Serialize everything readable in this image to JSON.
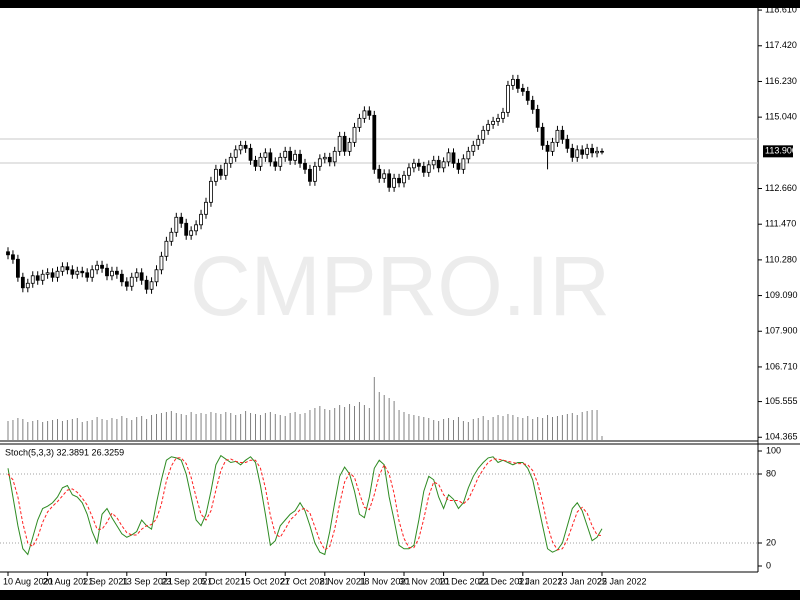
{
  "chart_data": [
    {
      "type": "candlestick",
      "watermark": "CMPRO.IR",
      "categories": [
        "10 Aug 2021",
        null,
        null,
        null,
        null,
        null,
        null,
        null,
        "20 Aug 2021",
        null,
        null,
        null,
        null,
        null,
        null,
        null,
        "1 Sep 2021",
        null,
        null,
        null,
        null,
        null,
        null,
        null,
        "13 Sep 2021",
        null,
        null,
        null,
        null,
        null,
        null,
        null,
        "23 Sep 2021",
        null,
        null,
        null,
        null,
        null,
        null,
        null,
        "5 Oct 2021",
        null,
        null,
        null,
        null,
        null,
        null,
        null,
        "15 Oct 2021",
        null,
        null,
        null,
        null,
        null,
        null,
        null,
        "27 Oct 2021",
        null,
        null,
        null,
        null,
        null,
        null,
        null,
        "8 Nov 2021",
        null,
        null,
        null,
        null,
        null,
        null,
        null,
        "18 Nov 2021",
        null,
        null,
        null,
        null,
        null,
        null,
        null,
        "30 Nov 2021",
        null,
        null,
        null,
        null,
        null,
        null,
        null,
        "10 Dec 2021",
        null,
        null,
        null,
        null,
        null,
        null,
        null,
        "22 Dec 2021",
        null,
        null,
        null,
        null,
        null,
        null,
        null,
        "3 Jan 2022",
        null,
        null,
        null,
        null,
        null,
        null,
        null,
        "13 Jan 2022",
        null,
        null,
        null,
        null,
        null,
        null,
        null,
        "25 Jan 2022"
      ],
      "open": [
        110.55,
        110.45,
        110.3,
        109.7,
        109.35,
        109.5,
        109.75,
        109.6,
        109.8,
        109.85,
        109.7,
        109.9,
        110.05,
        109.95,
        109.8,
        109.9,
        109.85,
        109.7,
        109.95,
        110.1,
        110.0,
        109.75,
        109.9,
        109.8,
        109.55,
        109.4,
        109.7,
        109.85,
        109.6,
        109.3,
        109.55,
        109.95,
        110.4,
        110.9,
        111.2,
        111.7,
        111.5,
        111.1,
        111.25,
        111.45,
        111.8,
        112.2,
        112.9,
        113.3,
        113.1,
        113.5,
        113.7,
        113.95,
        114.1,
        114.0,
        113.6,
        113.4,
        113.7,
        113.85,
        113.55,
        113.4,
        113.7,
        113.9,
        113.6,
        113.8,
        113.5,
        113.3,
        112.9,
        113.4,
        113.65,
        113.7,
        113.55,
        113.9,
        114.4,
        113.9,
        114.2,
        114.7,
        115.0,
        115.25,
        115.1,
        113.3,
        113.0,
        113.15,
        112.7,
        113.0,
        112.85,
        113.1,
        113.35,
        113.5,
        113.4,
        113.2,
        113.45,
        113.6,
        113.35,
        113.55,
        113.85,
        113.5,
        113.3,
        113.65,
        113.9,
        114.1,
        114.3,
        114.6,
        114.8,
        114.9,
        115.0,
        115.2,
        116.1,
        116.3,
        116.0,
        115.9,
        115.6,
        115.3,
        114.7,
        114.1,
        113.9,
        114.2,
        114.6,
        114.3,
        114.0,
        113.7,
        113.95,
        113.8,
        114.0,
        113.85,
        113.9
      ],
      "high": [
        110.7,
        110.6,
        110.45,
        109.85,
        109.65,
        109.9,
        109.9,
        109.95,
        110.0,
        110.0,
        110.05,
        110.2,
        110.2,
        110.1,
        110.05,
        110.05,
        110.0,
        110.1,
        110.25,
        110.25,
        110.15,
        110.05,
        110.05,
        109.95,
        109.7,
        109.85,
        110.0,
        110.0,
        109.75,
        109.7,
        110.1,
        110.55,
        111.05,
        111.35,
        111.85,
        111.85,
        111.65,
        111.4,
        111.6,
        111.95,
        112.35,
        113.05,
        113.45,
        113.45,
        113.65,
        113.85,
        114.1,
        114.25,
        114.25,
        114.15,
        113.75,
        113.85,
        114.0,
        114.0,
        113.7,
        113.85,
        114.05,
        114.05,
        113.95,
        113.95,
        113.65,
        113.45,
        113.55,
        113.8,
        113.85,
        113.85,
        114.05,
        114.55,
        114.55,
        114.35,
        114.85,
        115.15,
        115.4,
        115.4,
        115.25,
        113.45,
        113.3,
        113.3,
        113.15,
        113.15,
        113.25,
        113.5,
        113.65,
        113.65,
        113.55,
        113.6,
        113.75,
        113.75,
        113.7,
        114.0,
        114.0,
        113.65,
        113.8,
        114.05,
        114.25,
        114.45,
        114.75,
        114.95,
        115.05,
        115.15,
        115.35,
        116.25,
        116.45,
        116.45,
        116.15,
        116.05,
        115.75,
        115.45,
        114.85,
        114.25,
        114.35,
        114.75,
        114.75,
        114.45,
        114.15,
        114.1,
        114.1,
        114.15,
        114.15,
        114.05,
        114.0
      ],
      "low": [
        110.3,
        110.15,
        109.55,
        109.2,
        109.2,
        109.35,
        109.45,
        109.45,
        109.65,
        109.55,
        109.55,
        109.75,
        109.8,
        109.65,
        109.65,
        109.7,
        109.55,
        109.55,
        109.8,
        109.85,
        109.6,
        109.6,
        109.65,
        109.4,
        109.25,
        109.25,
        109.55,
        109.45,
        109.15,
        109.15,
        109.4,
        109.8,
        110.25,
        110.75,
        111.05,
        111.35,
        110.95,
        110.95,
        111.1,
        111.3,
        111.65,
        112.05,
        112.75,
        112.95,
        112.95,
        113.35,
        113.55,
        113.8,
        113.85,
        113.45,
        113.25,
        113.25,
        113.55,
        113.4,
        113.25,
        113.25,
        113.55,
        113.45,
        113.45,
        113.35,
        113.15,
        112.75,
        112.75,
        113.25,
        113.5,
        113.4,
        113.4,
        113.75,
        113.75,
        113.75,
        114.05,
        114.55,
        114.85,
        114.95,
        113.15,
        112.85,
        112.85,
        112.55,
        112.55,
        112.7,
        112.7,
        112.95,
        113.2,
        113.25,
        113.05,
        113.05,
        113.3,
        113.2,
        113.2,
        113.4,
        113.35,
        113.15,
        113.15,
        113.5,
        113.75,
        113.95,
        114.15,
        114.45,
        114.65,
        114.75,
        114.85,
        115.05,
        115.95,
        115.85,
        115.75,
        115.45,
        115.15,
        114.55,
        113.95,
        113.3,
        113.75,
        114.05,
        114.15,
        113.85,
        113.55,
        113.55,
        113.65,
        113.65,
        113.7,
        113.7,
        113.8
      ],
      "close": [
        110.45,
        110.3,
        109.7,
        109.35,
        109.5,
        109.75,
        109.6,
        109.8,
        109.85,
        109.7,
        109.9,
        110.05,
        109.95,
        109.8,
        109.9,
        109.85,
        109.7,
        109.95,
        110.1,
        110.0,
        109.75,
        109.9,
        109.8,
        109.55,
        109.4,
        109.7,
        109.85,
        109.6,
        109.3,
        109.55,
        109.95,
        110.4,
        110.9,
        111.2,
        111.7,
        111.5,
        111.1,
        111.25,
        111.45,
        111.8,
        112.2,
        112.9,
        113.3,
        113.1,
        113.5,
        113.7,
        113.95,
        114.1,
        114.0,
        113.6,
        113.4,
        113.7,
        113.85,
        113.55,
        113.4,
        113.7,
        113.9,
        113.6,
        113.8,
        113.5,
        113.3,
        112.9,
        113.4,
        113.65,
        113.7,
        113.55,
        113.9,
        114.4,
        113.9,
        114.2,
        114.7,
        115.0,
        115.25,
        115.1,
        113.3,
        113.0,
        113.15,
        112.7,
        113.0,
        112.85,
        113.1,
        113.35,
        113.5,
        113.4,
        113.2,
        113.45,
        113.6,
        113.35,
        113.55,
        113.85,
        113.5,
        113.3,
        113.65,
        113.9,
        114.1,
        114.3,
        114.6,
        114.8,
        114.9,
        115.0,
        115.2,
        116.1,
        116.3,
        116.0,
        115.9,
        115.6,
        115.3,
        114.7,
        114.1,
        113.9,
        114.2,
        114.6,
        114.3,
        114.0,
        113.7,
        113.95,
        113.8,
        114.0,
        113.85,
        113.9,
        113.9
      ],
      "volume": [
        1900,
        2000,
        2200,
        2100,
        1800,
        1900,
        2000,
        1800,
        1900,
        2000,
        2100,
        1900,
        2000,
        2100,
        2200,
        1800,
        1900,
        2000,
        2300,
        2100,
        2000,
        2200,
        2100,
        2400,
        2200,
        2000,
        2300,
        2400,
        2100,
        2500,
        2600,
        2700,
        2800,
        2900,
        2700,
        2600,
        2500,
        2800,
        2600,
        2700,
        2600,
        2800,
        2700,
        2600,
        2800,
        2700,
        2500,
        2600,
        2900,
        2700,
        2600,
        2500,
        2700,
        2800,
        2600,
        2500,
        2400,
        2700,
        2800,
        2600,
        2700,
        3000,
        3200,
        3400,
        3100,
        3000,
        3200,
        3500,
        3300,
        3600,
        3400,
        3800,
        3500,
        3200,
        6300,
        4800,
        4500,
        4200,
        3900,
        3000,
        2800,
        2600,
        2500,
        2400,
        2300,
        2200,
        2000,
        1900,
        2100,
        2200,
        2000,
        2300,
        1900,
        1800,
        2100,
        2200,
        2400,
        2000,
        2300,
        2500,
        2400,
        2600,
        2500,
        2300,
        2200,
        2400,
        2100,
        2300,
        2200,
        2500,
        2300,
        2400,
        2500,
        2600,
        2700,
        2500,
        2800,
        2900,
        3000,
        3000,
        400
      ],
      "bull_color": "#ffffff",
      "bear_color": "#000000",
      "volume_color": "#808080",
      "levels": [
        114.31,
        113.51
      ],
      "level_color": "#c8c8c8",
      "last_price": 113.9,
      "last_price_label": "113.900",
      "ylim": [
        104.24,
        118.68
      ],
      "yticks": [
        {
          "value": 118.61,
          "label": "118.610"
        },
        {
          "value": 117.42,
          "label": "117.420"
        },
        {
          "value": 116.23,
          "label": "116.230"
        },
        {
          "value": 115.04,
          "label": "115.040"
        },
        {
          "value": 112.66,
          "label": "112.660"
        },
        {
          "value": 111.47,
          "label": "111.470"
        },
        {
          "value": 110.28,
          "label": "110.280"
        },
        {
          "value": 109.09,
          "label": "109.090"
        },
        {
          "value": 107.9,
          "label": "107.900"
        },
        {
          "value": 106.71,
          "label": "106.710"
        },
        {
          "value": 105.555,
          "label": "105.555"
        },
        {
          "value": 104.365,
          "label": "104.365"
        }
      ]
    },
    {
      "type": "line",
      "title": "Stoch(5,3,3) 32.3891 26.3259",
      "series": [
        {
          "color": "#2e8b22",
          "dash": false,
          "values": [
            85,
            60,
            35,
            15,
            10,
            25,
            40,
            50,
            52,
            55,
            60,
            68,
            70,
            62,
            60,
            55,
            45,
            30,
            20,
            45,
            50,
            42,
            35,
            28,
            25,
            27,
            30,
            40,
            35,
            32,
            55,
            75,
            92,
            95,
            94,
            92,
            80,
            60,
            40,
            35,
            45,
            65,
            88,
            96,
            93,
            90,
            91,
            88,
            92,
            95,
            90,
            70,
            45,
            18,
            22,
            35,
            40,
            45,
            48,
            55,
            48,
            35,
            20,
            12,
            10,
            30,
            55,
            78,
            86,
            80,
            65,
            45,
            42,
            60,
            85,
            92,
            88,
            60,
            40,
            18,
            15,
            15,
            18,
            40,
            65,
            78,
            75,
            60,
            50,
            62,
            58,
            50,
            55,
            68,
            78,
            85,
            90,
            94,
            95,
            90,
            92,
            90,
            88,
            90,
            90,
            85,
            75,
            55,
            35,
            15,
            12,
            14,
            20,
            35,
            50,
            55,
            48,
            35,
            22,
            25,
            32.3891
          ]
        },
        {
          "color": "#ff2020",
          "dash": true,
          "values": [
            80,
            75,
            60,
            37,
            20,
            17,
            25,
            38,
            47,
            52,
            56,
            61,
            66,
            67,
            64,
            59,
            53,
            43,
            32,
            32,
            38,
            46,
            42,
            35,
            29,
            27,
            27,
            32,
            35,
            36,
            41,
            54,
            74,
            87,
            94,
            94,
            89,
            77,
            60,
            45,
            40,
            48,
            66,
            83,
            92,
            93,
            91,
            90,
            90,
            92,
            92,
            85,
            68,
            44,
            28,
            25,
            32,
            40,
            44,
            49,
            50,
            46,
            34,
            22,
            14,
            17,
            32,
            54,
            73,
            81,
            77,
            63,
            51,
            49,
            62,
            79,
            88,
            80,
            63,
            39,
            24,
            16,
            16,
            24,
            41,
            61,
            73,
            71,
            62,
            57,
            57,
            57,
            54,
            58,
            67,
            77,
            84,
            90,
            93,
            93,
            92,
            91,
            90,
            89,
            89,
            88,
            83,
            72,
            55,
            35,
            21,
            14,
            15,
            23,
            35,
            47,
            51,
            46,
            35,
            27,
            26.3259
          ]
        }
      ],
      "ylim": [
        0,
        100
      ],
      "yticks": [
        0,
        20,
        80,
        100
      ]
    }
  ]
}
